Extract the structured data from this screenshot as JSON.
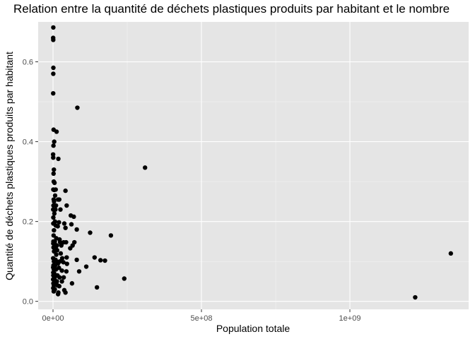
{
  "chart_data": {
    "type": "scatter",
    "title": "Relation entre la quantité de déchets plastiques produits par habitant et le nombre",
    "xlabel": "Population totale",
    "ylabel": "Quantité de déchets plastiques produits par habitant",
    "xlim": [
      -50000000,
      1400000000
    ],
    "ylim": [
      -0.02,
      0.7
    ],
    "xticks": [
      0,
      500000000,
      1000000000
    ],
    "xtick_labels": [
      "0e+00",
      "5e+08",
      "1e+09"
    ],
    "yticks": [
      0.0,
      0.2,
      0.4,
      0.6
    ],
    "ytick_labels": [
      "0.0",
      "0.2",
      "0.4",
      "0.6"
    ],
    "grid": true,
    "point_color": "#000000",
    "panel_background": "#e5e5e5",
    "points": [
      [
        1000000,
        0.686
      ],
      [
        500000,
        0.66
      ],
      [
        800000,
        0.655
      ],
      [
        1200000,
        0.585
      ],
      [
        900000,
        0.57
      ],
      [
        600000,
        0.521
      ],
      [
        82000000,
        0.485
      ],
      [
        2000000,
        0.43
      ],
      [
        12000000,
        0.425
      ],
      [
        4000000,
        0.4
      ],
      [
        1500000,
        0.39
      ],
      [
        18000000,
        0.357
      ],
      [
        300000,
        0.368
      ],
      [
        700000,
        0.36
      ],
      [
        310000000,
        0.335
      ],
      [
        3000000,
        0.33
      ],
      [
        1800000,
        0.32
      ],
      [
        2500000,
        0.3
      ],
      [
        5000000,
        0.297
      ],
      [
        9000000,
        0.28
      ],
      [
        1000000,
        0.28
      ],
      [
        4000000,
        0.279
      ],
      [
        42000000,
        0.277
      ],
      [
        7000000,
        0.265
      ],
      [
        2200000,
        0.255
      ],
      [
        17000000,
        0.255
      ],
      [
        21000000,
        0.255
      ],
      [
        3500000,
        0.25
      ],
      [
        1500000,
        0.24
      ],
      [
        10000000,
        0.24
      ],
      [
        46000000,
        0.24
      ],
      [
        600000,
        0.23
      ],
      [
        8000000,
        0.23
      ],
      [
        25000000,
        0.23
      ],
      [
        4500000,
        0.22
      ],
      [
        60000000,
        0.215
      ],
      [
        70000000,
        0.212
      ],
      [
        1100000,
        0.21
      ],
      [
        6500000,
        0.2
      ],
      [
        20000000,
        0.198
      ],
      [
        1000000,
        0.195
      ],
      [
        38000000,
        0.195
      ],
      [
        62000000,
        0.193
      ],
      [
        9000000,
        0.19
      ],
      [
        16000000,
        0.188
      ],
      [
        42000000,
        0.184
      ],
      [
        80000000,
        0.18
      ],
      [
        3200000,
        0.178
      ],
      [
        125000000,
        0.172
      ],
      [
        195000000,
        0.165
      ],
      [
        2000000,
        0.165
      ],
      [
        11000000,
        0.158
      ],
      [
        22000000,
        0.155
      ],
      [
        1300000,
        0.15
      ],
      [
        6000000,
        0.15
      ],
      [
        24000000,
        0.148
      ],
      [
        36000000,
        0.148
      ],
      [
        44000000,
        0.148
      ],
      [
        72000000,
        0.148
      ],
      [
        900000,
        0.145
      ],
      [
        5500000,
        0.145
      ],
      [
        13000000,
        0.14
      ],
      [
        28000000,
        0.14
      ],
      [
        66000000,
        0.14
      ],
      [
        1700000,
        0.135
      ],
      [
        9000000,
        0.135
      ],
      [
        58000000,
        0.133
      ],
      [
        14000000,
        0.128
      ],
      [
        3500000,
        0.125
      ],
      [
        26000000,
        0.12
      ],
      [
        11000000,
        0.117
      ],
      [
        140000000,
        0.11
      ],
      [
        46000000,
        0.11
      ],
      [
        600000,
        0.108
      ],
      [
        31000000,
        0.108
      ],
      [
        8500000,
        0.104
      ],
      [
        80000000,
        0.104
      ],
      [
        160000000,
        0.103
      ],
      [
        175000000,
        0.102
      ],
      [
        3000000,
        0.1
      ],
      [
        12000000,
        0.1
      ],
      [
        23000000,
        0.1
      ],
      [
        35000000,
        0.098
      ],
      [
        17000000,
        0.095
      ],
      [
        47000000,
        0.094
      ],
      [
        1500000,
        0.09
      ],
      [
        7000000,
        0.09
      ],
      [
        112000000,
        0.087
      ],
      [
        600000,
        0.085
      ],
      [
        20000000,
        0.084
      ],
      [
        2800000,
        0.08
      ],
      [
        10000000,
        0.08
      ],
      [
        30000000,
        0.077
      ],
      [
        45000000,
        0.075
      ],
      [
        88000000,
        0.075
      ],
      [
        900000,
        0.072
      ],
      [
        4000000,
        0.07
      ],
      [
        15000000,
        0.065
      ],
      [
        1100000,
        0.065
      ],
      [
        7000000,
        0.062
      ],
      [
        22000000,
        0.06
      ],
      [
        36000000,
        0.06
      ],
      [
        240000000,
        0.057
      ],
      [
        500000,
        0.055
      ],
      [
        5000000,
        0.055
      ],
      [
        13000000,
        0.05
      ],
      [
        30000000,
        0.05
      ],
      [
        1300000,
        0.045
      ],
      [
        10000000,
        0.045
      ],
      [
        64000000,
        0.045
      ],
      [
        3000000,
        0.04
      ],
      [
        15000000,
        0.04
      ],
      [
        21000000,
        0.038
      ],
      [
        148000000,
        0.035
      ],
      [
        800000,
        0.033
      ],
      [
        6000000,
        0.03
      ],
      [
        38000000,
        0.028
      ],
      [
        2500000,
        0.025
      ],
      [
        18000000,
        0.022
      ],
      [
        42000000,
        0.022
      ],
      [
        17000000,
        0.018
      ],
      [
        1340000000,
        0.12
      ],
      [
        1220000000,
        0.01
      ]
    ]
  }
}
